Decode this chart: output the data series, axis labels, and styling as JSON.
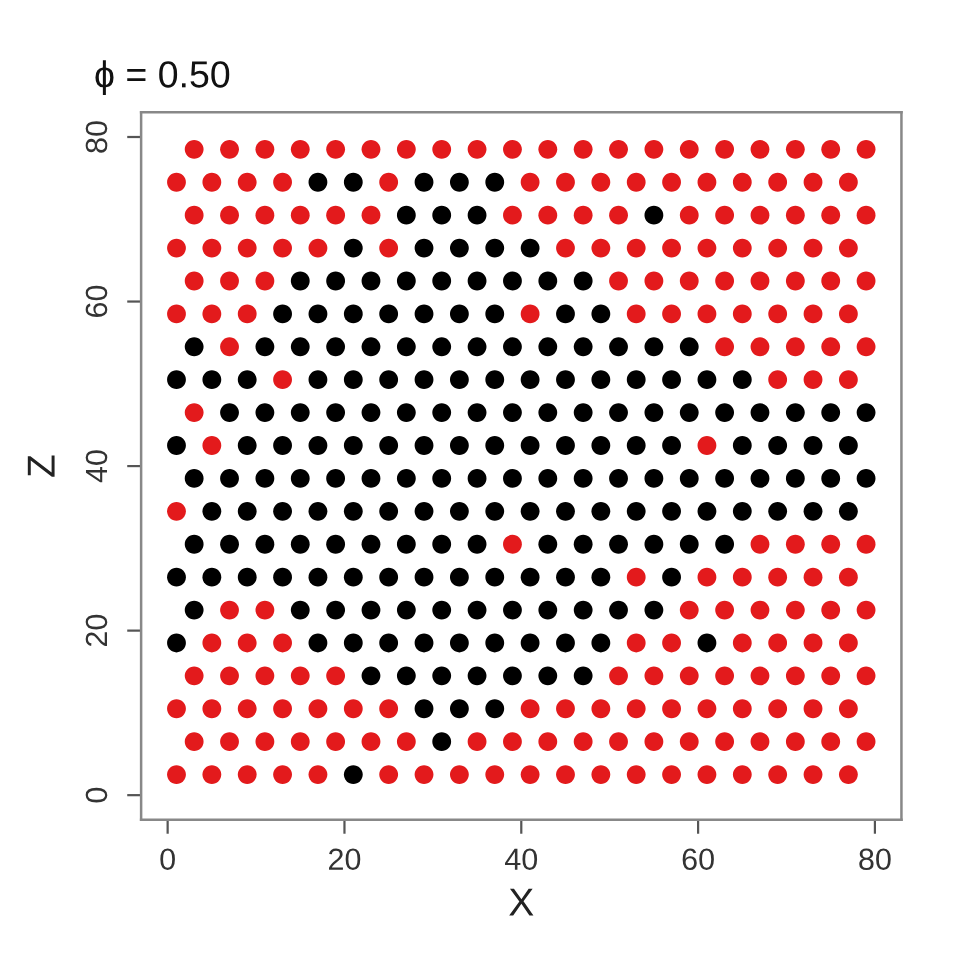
{
  "chart_data": {
    "type": "scatter",
    "title": "ϕ = 0.50",
    "xlabel": "X",
    "ylabel": "Z",
    "xlim": [
      -3,
      83
    ],
    "ylim": [
      -3,
      83
    ],
    "xticks": [
      0,
      20,
      40,
      60,
      80
    ],
    "yticks": [
      0,
      20,
      40,
      60,
      80
    ],
    "marker": "circle",
    "series": [
      {
        "color": "#e31a1c",
        "x": [
          1,
          5,
          9,
          13,
          17,
          25,
          29,
          33,
          37,
          41,
          45,
          49,
          53,
          57,
          61,
          65,
          69,
          73,
          77,
          3,
          7,
          11,
          15,
          19,
          23,
          27,
          35,
          39,
          43,
          47,
          51,
          55,
          59,
          63,
          67,
          71,
          75,
          79,
          1,
          5,
          9,
          13,
          17,
          21,
          25,
          41,
          45,
          49,
          53,
          57,
          61,
          65,
          69,
          73,
          77,
          3,
          7,
          11,
          15,
          19,
          51,
          55,
          59,
          63,
          67,
          71,
          75,
          79,
          5,
          9,
          13,
          53,
          57,
          65,
          69,
          73,
          77,
          7,
          11,
          59,
          63,
          67,
          71,
          75,
          79,
          53,
          61,
          65,
          69,
          73,
          77,
          39,
          67,
          71,
          75,
          79,
          1,
          5,
          61,
          3,
          13,
          69,
          73,
          77,
          7,
          63,
          67,
          71,
          75,
          79,
          1,
          5,
          9,
          41,
          53,
          57,
          61,
          65,
          69,
          73,
          77,
          3,
          7,
          11,
          51,
          55,
          59,
          63,
          67,
          71,
          75,
          79,
          1,
          5,
          9,
          13,
          17,
          25,
          45,
          49,
          53,
          57,
          61,
          65,
          69,
          73,
          77,
          3,
          7,
          11,
          15,
          19,
          23,
          39,
          43,
          47,
          51,
          59,
          63,
          67,
          71,
          75,
          79,
          1,
          5,
          9,
          13,
          25,
          41,
          45,
          49,
          53,
          57,
          61,
          65,
          69,
          73,
          77,
          3,
          7,
          11,
          15,
          19,
          23,
          27,
          31,
          35,
          39,
          43,
          47,
          51,
          55,
          59,
          63,
          67,
          71,
          75,
          79
        ],
        "values": [
          2.5,
          2.5,
          2.5,
          2.5,
          2.5,
          2.5,
          2.5,
          2.5,
          2.5,
          2.5,
          2.5,
          2.5,
          2.5,
          2.5,
          2.5,
          2.5,
          2.5,
          2.5,
          2.5,
          6.5,
          6.5,
          6.5,
          6.5,
          6.5,
          6.5,
          6.5,
          6.5,
          6.5,
          6.5,
          6.5,
          6.5,
          6.5,
          6.5,
          6.5,
          6.5,
          6.5,
          6.5,
          6.5,
          10.5,
          10.5,
          10.5,
          10.5,
          10.5,
          10.5,
          10.5,
          10.5,
          10.5,
          10.5,
          10.5,
          10.5,
          10.5,
          10.5,
          10.5,
          10.5,
          10.5,
          14.5,
          14.5,
          14.5,
          14.5,
          14.5,
          14.5,
          14.5,
          14.5,
          14.5,
          14.5,
          14.5,
          14.5,
          14.5,
          18.5,
          18.5,
          18.5,
          18.5,
          18.5,
          18.5,
          18.5,
          18.5,
          18.5,
          22.5,
          22.5,
          22.5,
          22.5,
          22.5,
          22.5,
          22.5,
          22.5,
          26.5,
          26.5,
          26.5,
          26.5,
          26.5,
          26.5,
          30.5,
          30.5,
          30.5,
          30.5,
          30.5,
          34.5,
          42.5,
          42.5,
          46.5,
          50.5,
          50.5,
          50.5,
          50.5,
          54.5,
          54.5,
          54.5,
          54.5,
          54.5,
          54.5,
          58.5,
          58.5,
          58.5,
          58.5,
          58.5,
          58.5,
          58.5,
          58.5,
          58.5,
          58.5,
          58.5,
          62.5,
          62.5,
          62.5,
          62.5,
          62.5,
          62.5,
          62.5,
          62.5,
          62.5,
          62.5,
          62.5,
          66.5,
          66.5,
          66.5,
          66.5,
          66.5,
          66.5,
          66.5,
          66.5,
          66.5,
          66.5,
          66.5,
          66.5,
          66.5,
          66.5,
          66.5,
          70.5,
          70.5,
          70.5,
          70.5,
          70.5,
          70.5,
          70.5,
          70.5,
          70.5,
          70.5,
          70.5,
          70.5,
          70.5,
          70.5,
          70.5,
          70.5,
          74.5,
          74.5,
          74.5,
          74.5,
          74.5,
          74.5,
          74.5,
          74.5,
          74.5,
          74.5,
          74.5,
          74.5,
          74.5,
          74.5,
          74.5,
          78.5,
          78.5,
          78.5,
          78.5,
          78.5,
          78.5,
          78.5,
          78.5,
          78.5,
          78.5,
          78.5,
          78.5,
          78.5,
          78.5,
          78.5,
          78.5,
          78.5,
          78.5,
          78.5,
          78.5
        ]
      },
      {
        "color": "#000000",
        "x": [
          21,
          31,
          29,
          33,
          37,
          23,
          27,
          31,
          35,
          39,
          43,
          47,
          1,
          17,
          21,
          25,
          29,
          33,
          37,
          41,
          45,
          49,
          61,
          3,
          15,
          19,
          23,
          27,
          31,
          35,
          39,
          43,
          47,
          51,
          55,
          1,
          5,
          9,
          13,
          17,
          21,
          25,
          29,
          33,
          37,
          41,
          45,
          49,
          57,
          3,
          7,
          11,
          15,
          19,
          23,
          27,
          31,
          35,
          43,
          47,
          51,
          55,
          59,
          63,
          5,
          9,
          13,
          17,
          21,
          25,
          29,
          33,
          37,
          41,
          45,
          49,
          53,
          57,
          61,
          65,
          69,
          73,
          77,
          3,
          7,
          11,
          15,
          19,
          23,
          27,
          31,
          35,
          39,
          43,
          47,
          51,
          55,
          59,
          63,
          67,
          71,
          75,
          79,
          1,
          9,
          13,
          17,
          21,
          25,
          29,
          33,
          37,
          41,
          45,
          49,
          53,
          57,
          65,
          69,
          73,
          77,
          7,
          11,
          15,
          19,
          23,
          27,
          31,
          35,
          39,
          43,
          47,
          51,
          55,
          59,
          63,
          67,
          71,
          75,
          79,
          1,
          5,
          9,
          17,
          21,
          25,
          29,
          33,
          37,
          41,
          45,
          49,
          53,
          57,
          61,
          65,
          3,
          11,
          15,
          19,
          23,
          27,
          31,
          35,
          39,
          43,
          47,
          51,
          55,
          59,
          13,
          17,
          21,
          25,
          29,
          33,
          37,
          45,
          49,
          15,
          19,
          23,
          27,
          31,
          35,
          39,
          43,
          47,
          21,
          29,
          33,
          37,
          41,
          27,
          31,
          35,
          55,
          17,
          21,
          29,
          33,
          37
        ],
        "values": [
          2.5,
          6.5,
          10.5,
          10.5,
          10.5,
          14.5,
          14.5,
          14.5,
          14.5,
          14.5,
          14.5,
          14.5,
          18.5,
          18.5,
          18.5,
          18.5,
          18.5,
          18.5,
          18.5,
          18.5,
          18.5,
          18.5,
          18.5,
          22.5,
          22.5,
          22.5,
          22.5,
          22.5,
          22.5,
          22.5,
          22.5,
          22.5,
          22.5,
          22.5,
          22.5,
          26.5,
          26.5,
          26.5,
          26.5,
          26.5,
          26.5,
          26.5,
          26.5,
          26.5,
          26.5,
          26.5,
          26.5,
          26.5,
          26.5,
          30.5,
          30.5,
          30.5,
          30.5,
          30.5,
          30.5,
          30.5,
          30.5,
          30.5,
          30.5,
          30.5,
          30.5,
          30.5,
          30.5,
          30.5,
          34.5,
          34.5,
          34.5,
          34.5,
          34.5,
          34.5,
          34.5,
          34.5,
          34.5,
          34.5,
          34.5,
          34.5,
          34.5,
          34.5,
          34.5,
          34.5,
          34.5,
          34.5,
          34.5,
          38.5,
          38.5,
          38.5,
          38.5,
          38.5,
          38.5,
          38.5,
          38.5,
          38.5,
          38.5,
          38.5,
          38.5,
          38.5,
          38.5,
          38.5,
          38.5,
          38.5,
          38.5,
          38.5,
          38.5,
          42.5,
          42.5,
          42.5,
          42.5,
          42.5,
          42.5,
          42.5,
          42.5,
          42.5,
          42.5,
          42.5,
          42.5,
          42.5,
          42.5,
          42.5,
          42.5,
          42.5,
          42.5,
          46.5,
          46.5,
          46.5,
          46.5,
          46.5,
          46.5,
          46.5,
          46.5,
          46.5,
          46.5,
          46.5,
          46.5,
          46.5,
          46.5,
          46.5,
          46.5,
          46.5,
          46.5,
          46.5,
          50.5,
          50.5,
          50.5,
          50.5,
          50.5,
          50.5,
          50.5,
          50.5,
          50.5,
          50.5,
          50.5,
          50.5,
          50.5,
          50.5,
          50.5,
          50.5,
          54.5,
          54.5,
          54.5,
          54.5,
          54.5,
          54.5,
          54.5,
          54.5,
          54.5,
          54.5,
          54.5,
          54.5,
          54.5,
          54.5,
          58.5,
          58.5,
          58.5,
          58.5,
          58.5,
          58.5,
          58.5,
          58.5,
          58.5,
          62.5,
          62.5,
          62.5,
          62.5,
          62.5,
          62.5,
          62.5,
          62.5,
          62.5,
          66.5,
          66.5,
          66.5,
          66.5,
          66.5,
          70.5,
          70.5,
          70.5,
          70.5,
          74.5,
          74.5,
          74.5,
          74.5,
          74.5
        ]
      }
    ]
  }
}
